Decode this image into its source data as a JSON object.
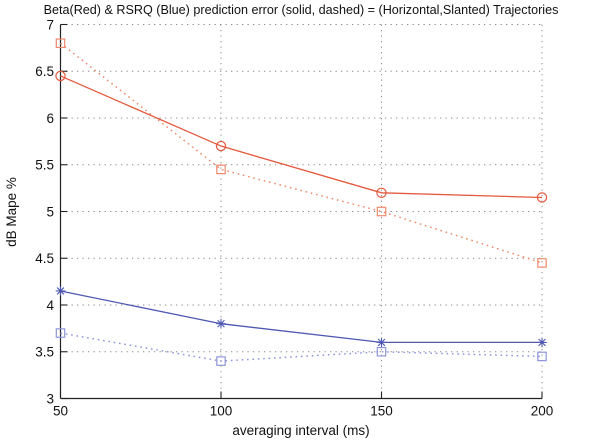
{
  "figure": {
    "background": "#ffffff"
  },
  "chart_data": {
    "type": "line",
    "title": "Beta(Red) & RSRQ (Blue) prediction error (solid, dashed) = (Horizontal,Slanted) Trajectories",
    "xlabel": "averaging interval (ms)",
    "ylabel": "dB Mape %",
    "xlim": [
      50,
      200
    ],
    "ylim": [
      3,
      7
    ],
    "xticks": [
      50,
      100,
      150,
      200
    ],
    "yticks": [
      3,
      3.5,
      4,
      4.5,
      5,
      5.5,
      6,
      6.5,
      7
    ],
    "grid": true,
    "legend": "none",
    "x": [
      50,
      100,
      150,
      200
    ],
    "series": [
      {
        "name": "Beta Horizontal trajectory (red, solid, circle markers)",
        "color": "#e4593e",
        "line_style": "solid",
        "marker": "circle",
        "values": [
          6.45,
          5.7,
          5.2,
          5.15
        ]
      },
      {
        "name": "Beta Slanted trajectory (red, dashed, square markers)",
        "color": "#ef8a6e",
        "line_style": "dotted",
        "marker": "square",
        "values": [
          6.8,
          5.45,
          5.0,
          4.45
        ]
      },
      {
        "name": "RSRQ Horizontal trajectory (blue, solid, asterisk markers)",
        "color": "#4f59b2",
        "line_style": "solid",
        "marker": "asterisk",
        "values": [
          4.15,
          3.8,
          3.6,
          3.6
        ]
      },
      {
        "name": "RSRQ Slanted trajectory (blue, dashed, square markers)",
        "color": "#8f96d9",
        "line_style": "dotted",
        "marker": "square",
        "values": [
          3.7,
          3.4,
          3.5,
          3.45
        ]
      }
    ],
    "axis_color": "#222222",
    "grid_color": "#8c8c8c",
    "text_color": "#111111"
  }
}
